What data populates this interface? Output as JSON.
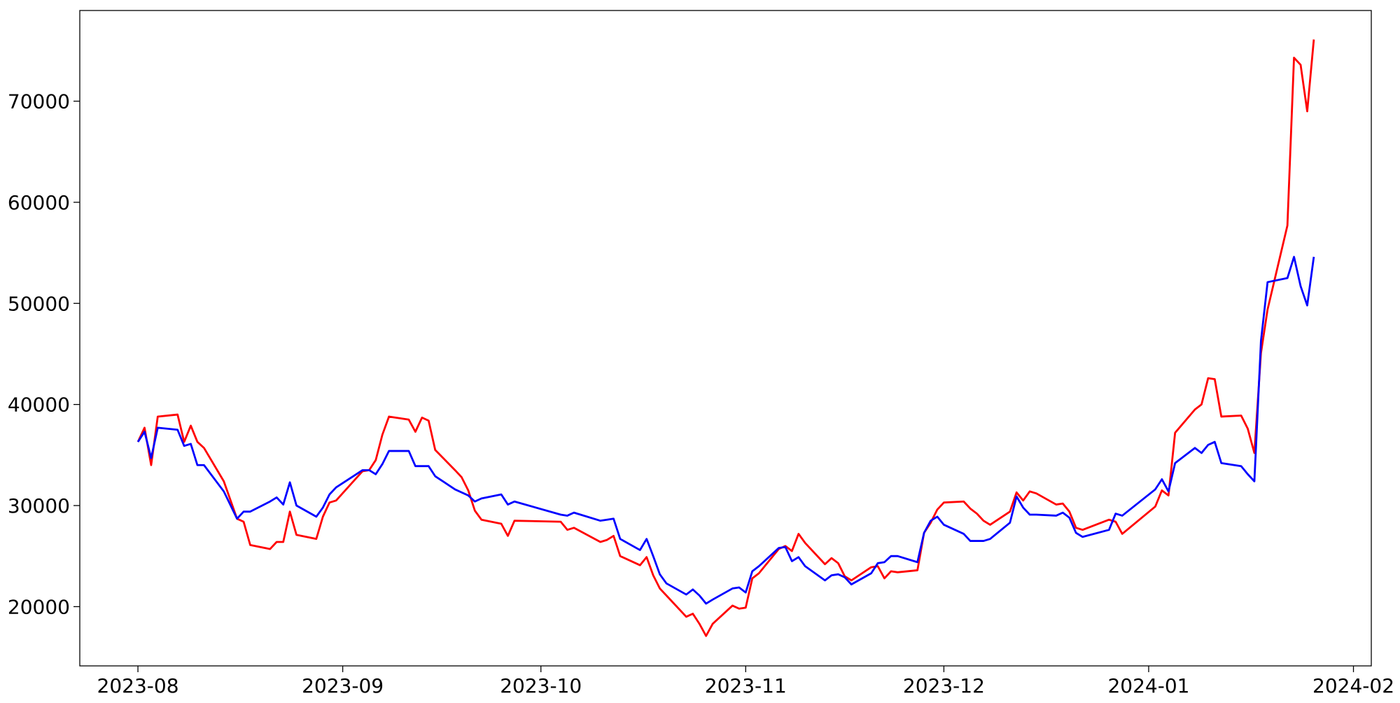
{
  "chart_data": {
    "type": "line",
    "x": [
      0,
      1,
      2,
      3,
      6,
      7,
      8,
      9,
      10,
      13,
      15,
      16,
      17,
      20,
      21,
      22,
      23,
      24,
      27,
      28,
      29,
      30,
      34,
      35,
      36,
      37,
      38,
      41,
      42,
      43,
      44,
      45,
      48,
      49,
      50,
      51,
      52,
      55,
      56,
      57,
      64,
      65,
      66,
      70,
      71,
      72,
      73,
      76,
      77,
      78,
      79,
      80,
      83,
      84,
      85,
      86,
      87,
      90,
      91,
      92,
      93,
      94,
      97,
      98,
      99,
      100,
      101,
      104,
      105,
      106,
      107,
      108,
      111,
      112,
      113,
      114,
      115,
      118,
      119,
      120,
      121,
      122,
      125,
      126,
      127,
      128,
      129,
      132,
      133,
      134,
      135,
      136,
      139,
      140,
      141,
      142,
      143,
      147,
      148,
      149,
      154,
      155,
      156,
      157,
      160,
      161,
      162,
      163,
      164,
      167,
      168,
      169,
      170,
      171,
      174,
      175,
      176,
      177,
      178
    ],
    "series": [
      {
        "color": "#ff0000",
        "values": [
          36300,
          37700,
          34000,
          38800,
          39000,
          36300,
          37900,
          36300,
          35700,
          32400,
          28700,
          28400,
          26100,
          25700,
          26400,
          26400,
          29400,
          27100,
          26700,
          28900,
          30300,
          30500,
          33400,
          33500,
          34500,
          37000,
          38800,
          38500,
          37300,
          38700,
          38400,
          35500,
          33500,
          32800,
          31500,
          29500,
          28600,
          28200,
          27000,
          28500,
          28400,
          27600,
          27800,
          26400,
          26600,
          27000,
          25000,
          24100,
          24900,
          23100,
          21800,
          21100,
          19000,
          19300,
          18300,
          17100,
          18300,
          20100,
          19800,
          19900,
          22800,
          23300,
          25700,
          26000,
          25500,
          27200,
          26300,
          24200,
          24800,
          24300,
          23000,
          22600,
          23900,
          24000,
          22800,
          23500,
          23400,
          23600,
          27300,
          28300,
          29600,
          30300,
          30400,
          29700,
          29200,
          28500,
          28100,
          29400,
          31300,
          30500,
          31400,
          31200,
          30100,
          30200,
          29400,
          27800,
          27600,
          28600,
          28400,
          27200,
          29900,
          31500,
          31000,
          37200,
          39500,
          40000,
          42600,
          42500,
          38800,
          38900,
          37600,
          35200,
          45100,
          49400,
          57700,
          74300,
          73600,
          69000,
          76100
        ]
      },
      {
        "color": "#0000ff",
        "values": [
          36300,
          37300,
          34700,
          37700,
          37500,
          35900,
          36100,
          34000,
          34000,
          31400,
          28700,
          29400,
          29400,
          30400,
          30800,
          30100,
          32300,
          30000,
          28900,
          29800,
          31100,
          31800,
          33500,
          33500,
          33100,
          34100,
          35400,
          35400,
          33900,
          33900,
          33900,
          32900,
          31600,
          31300,
          31000,
          30400,
          30700,
          31100,
          30100,
          30400,
          29100,
          29000,
          29300,
          28500,
          28600,
          28700,
          26700,
          25600,
          26700,
          25000,
          23200,
          22300,
          21200,
          21700,
          21100,
          20300,
          20700,
          21800,
          21900,
          21400,
          23500,
          24000,
          25800,
          25900,
          24500,
          24900,
          24000,
          22600,
          23100,
          23200,
          22900,
          22200,
          23300,
          24300,
          24400,
          25000,
          25000,
          24400,
          27300,
          28500,
          28900,
          28100,
          27200,
          26500,
          26500,
          26500,
          26700,
          28300,
          30900,
          29800,
          29100,
          29100,
          29000,
          29300,
          28800,
          27300,
          26900,
          27600,
          29200,
          29000,
          31600,
          32600,
          31400,
          34200,
          35700,
          35200,
          36000,
          36300,
          34200,
          33900,
          33100,
          32400,
          46300,
          52100,
          52500,
          54600,
          51700,
          49800,
          54600
        ]
      }
    ],
    "xlim": [
      -8.8,
      186.7
    ],
    "xticks": [
      {
        "value": 0,
        "label": "2023-08"
      },
      {
        "value": 31,
        "label": "2023-09"
      },
      {
        "value": 61,
        "label": "2023-10"
      },
      {
        "value": 92,
        "label": "2023-11"
      },
      {
        "value": 122,
        "label": "2023-12"
      },
      {
        "value": 153,
        "label": "2024-01"
      },
      {
        "value": 184,
        "label": "2024-02"
      }
    ],
    "ylim": [
      14140,
      78970
    ],
    "yticks": [
      20000,
      30000,
      40000,
      50000,
      60000,
      70000
    ],
    "grid": false
  }
}
